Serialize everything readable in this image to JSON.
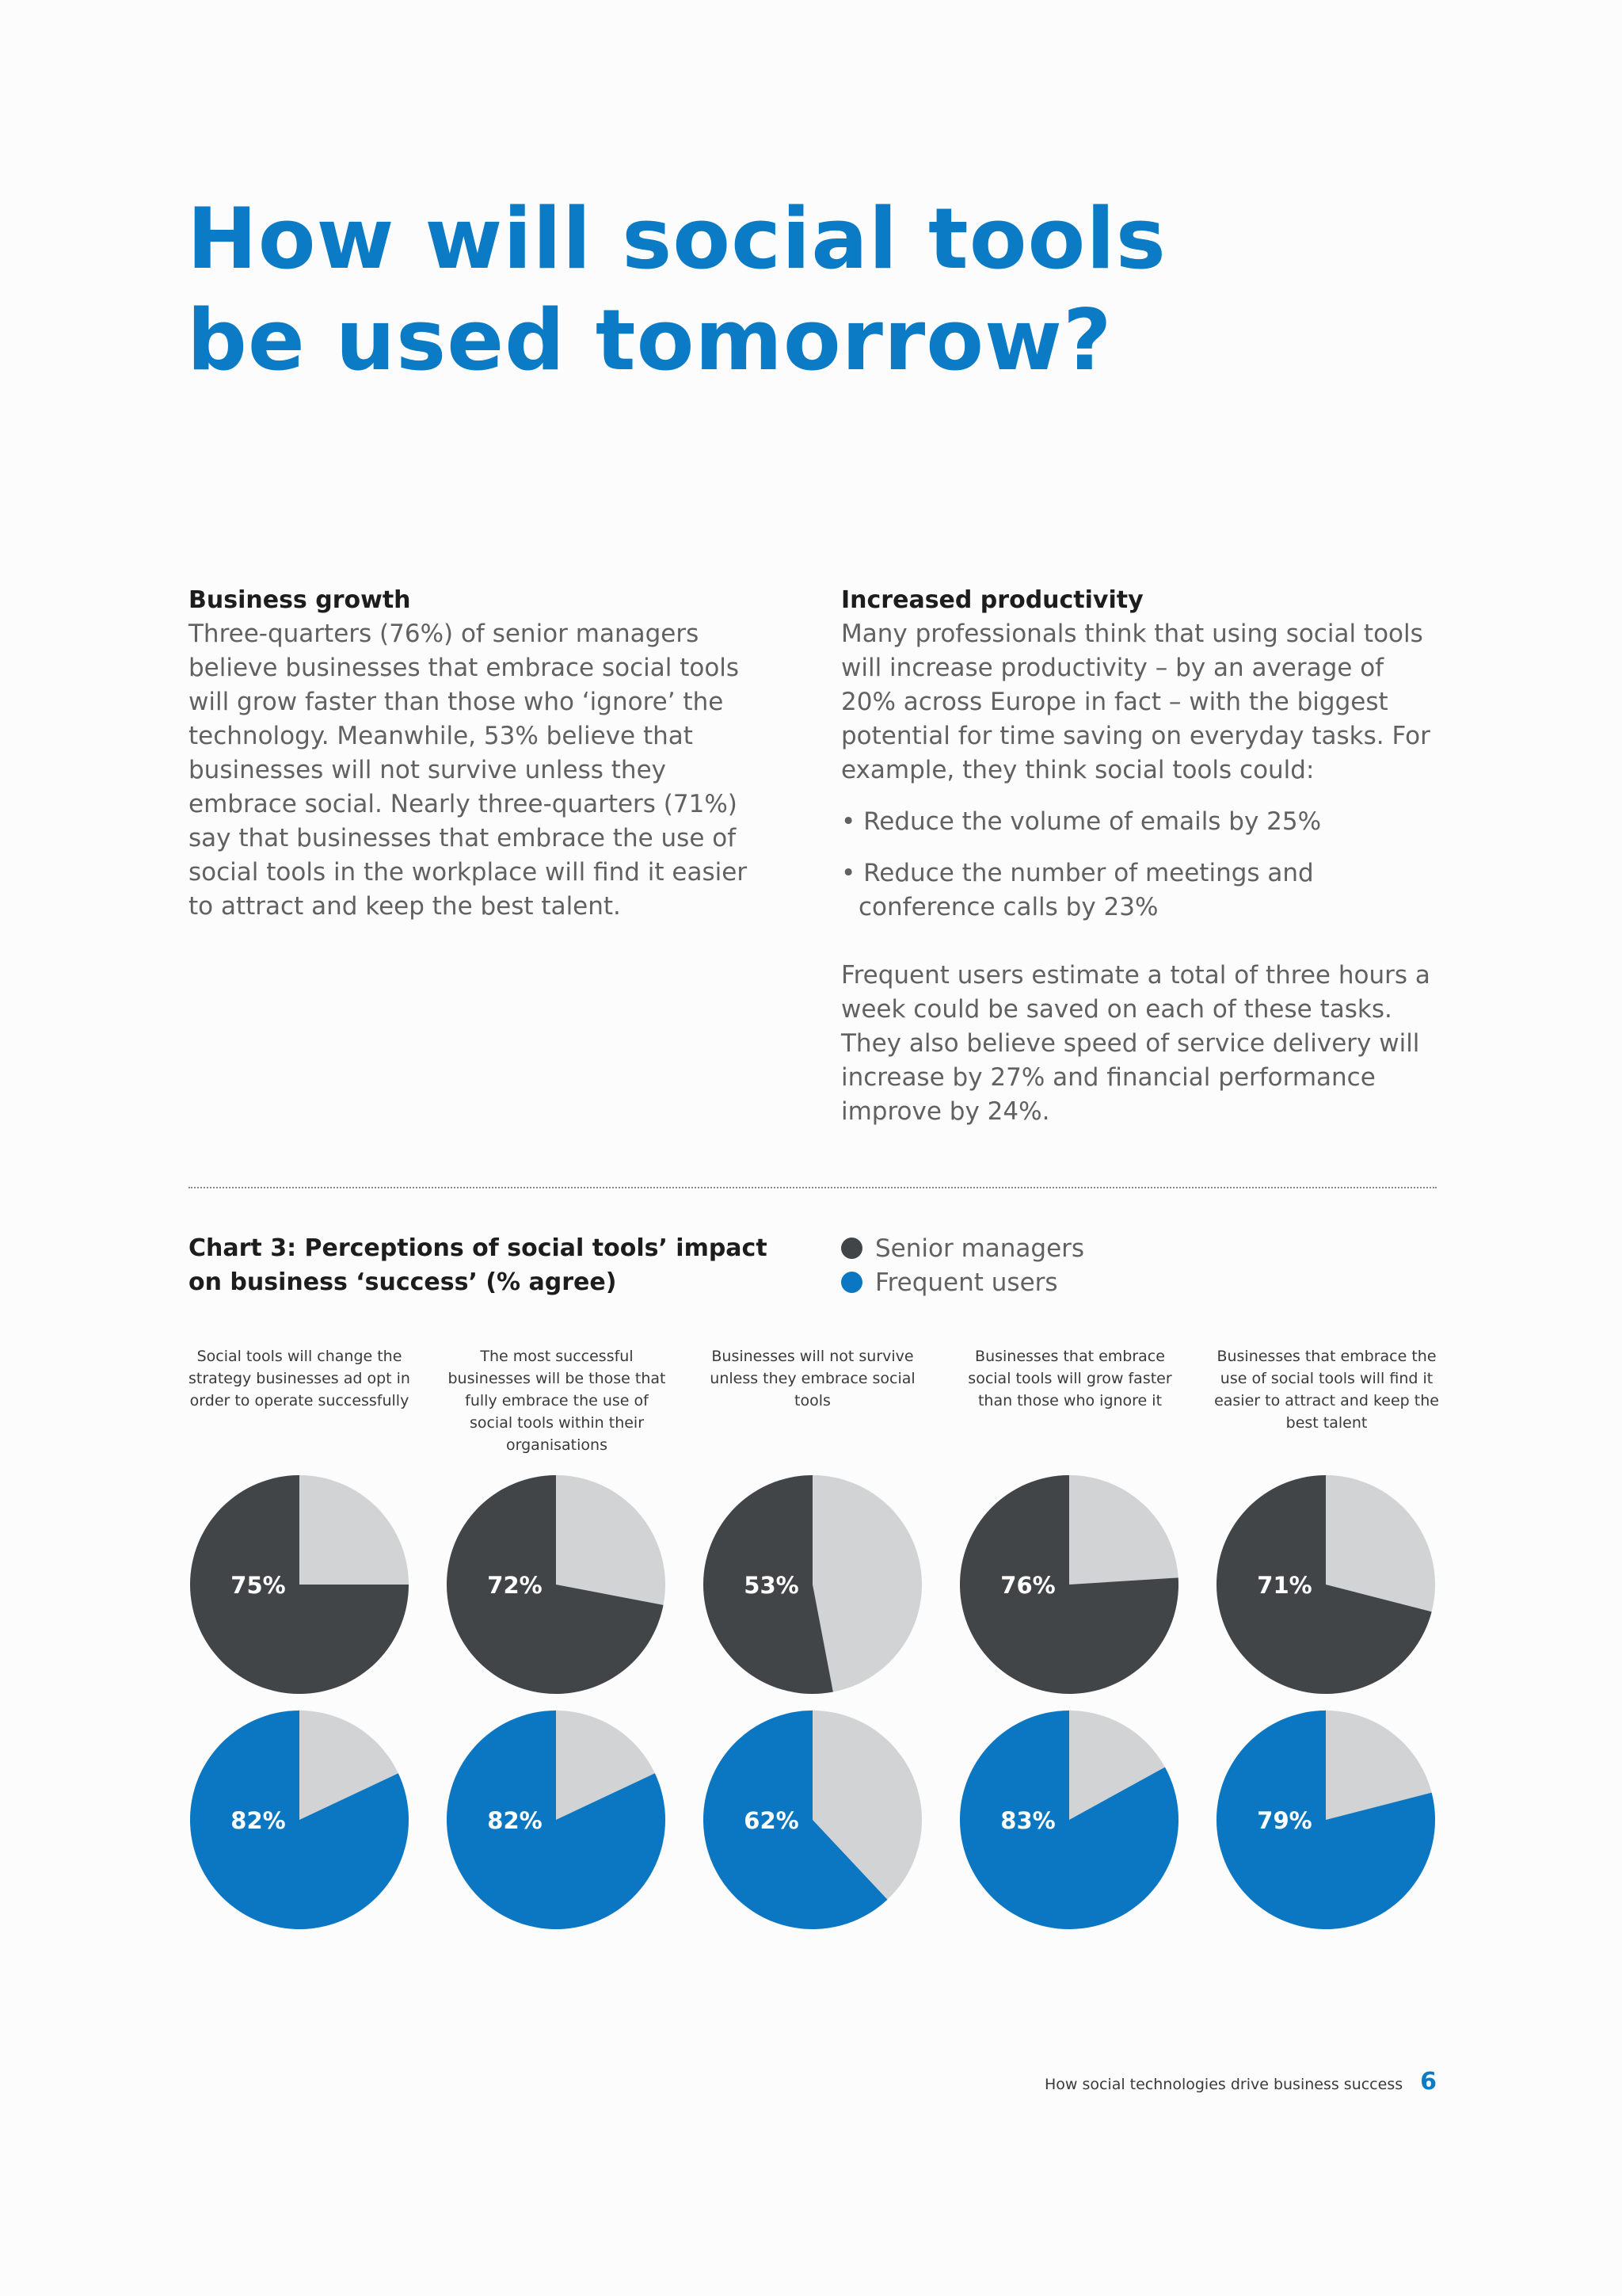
{
  "page": {
    "title_line1": "How will social tools",
    "title_line2": "be used tomorrow?"
  },
  "left_column": {
    "heading": "Business growth",
    "body": "Three-quarters (76%) of senior managers believe businesses that embrace social tools will grow faster than those who ‘ignore’ the technology. Meanwhile, 53% believe that businesses will not survive unless they embrace social. Nearly three-quarters (71%) say that businesses that embrace the use of social tools in the workplace will find it easier to attract and keep the best talent."
  },
  "right_column": {
    "heading": "Increased productivity",
    "intro": "Many professionals think that using social tools will increase productivity – by an average of 20% across Europe in fact – with the biggest potential for time saving on everyday tasks. For example, they think social tools could:",
    "bullets": [
      "• Reduce the volume of emails by 25%",
      "• Reduce the number of meetings and conference calls by 23%"
    ],
    "closing": "Frequent users estimate a total of three hours a week could be saved on each of these tasks. They also believe speed of service delivery will increase by 27% and financial performance improve by 24%."
  },
  "footer": {
    "text": "How social technologies drive business success",
    "page_number": "6"
  },
  "colors": {
    "accent": "#0a7bc4",
    "senior": "#424548",
    "frequent": "#0b77c2",
    "remainder": "#d2d3d5"
  },
  "chart_data": {
    "type": "pie",
    "title": "Chart 3: Perceptions of social tools’ impact on business ‘success’ (% agree)",
    "legend": [
      "Senior managers",
      "Frequent users"
    ],
    "legend_placement": "top-right",
    "categories": [
      "Social tools will change the strategy businesses ad opt in order to operate successfully",
      "The most successful businesses will be those that fully embrace the use of social tools within their organisations",
      "Businesses will not survive unless they embrace social tools",
      "Businesses that embrace social tools will grow faster than those who ignore it",
      "Businesses that embrace the use of social tools will find it easier to attract and keep the best talent"
    ],
    "series": [
      {
        "name": "Senior managers",
        "values": [
          75,
          72,
          53,
          76,
          71
        ],
        "labels": [
          "75%",
          "72%",
          "53%",
          "76%",
          "71%"
        ]
      },
      {
        "name": "Frequent users",
        "values": [
          82,
          82,
          62,
          83,
          79
        ],
        "labels": [
          "82%",
          "82%",
          "62%",
          "83%",
          "79%"
        ]
      }
    ]
  }
}
